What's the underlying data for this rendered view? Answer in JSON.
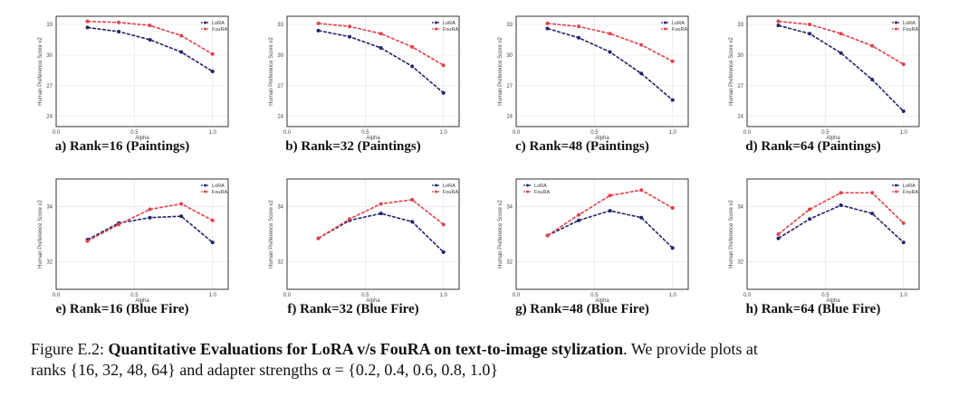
{
  "figure": {
    "caption": {
      "label": "Figure E.2:",
      "bold": "Quantitative Evaluations for LoRA v/s FouRA on text-to-image stylization",
      "rest_line1": ". We provide plots at",
      "line2": "ranks {16, 32, 48, 64} and adapter strengths α = {0.2, 0.4, 0.6, 0.8, 1.0}"
    }
  },
  "colors": {
    "lora": "#23236b",
    "foura": "#e0424c"
  },
  "chart_data": [
    {
      "type": "line",
      "panel_label": "a) Rank=16 (Paintings)",
      "xlabel": "Alpha",
      "ylabel": "Human Preference Score v2",
      "xlim": [
        0.0,
        1.1
      ],
      "ylim": [
        23.0,
        33.8
      ],
      "xticks": [
        0.0,
        0.5,
        1.0
      ],
      "yticks": [
        24,
        27,
        30,
        33
      ],
      "legend_position": "top-right",
      "grid": true,
      "x": [
        0.2,
        0.4,
        0.6,
        0.8,
        1.0
      ],
      "series": [
        {
          "name": "LoRA",
          "values": [
            32.7,
            32.3,
            31.5,
            30.3,
            28.4
          ]
        },
        {
          "name": "FouRA",
          "values": [
            33.3,
            33.2,
            32.9,
            31.9,
            30.1
          ]
        }
      ]
    },
    {
      "type": "line",
      "panel_label": "b) Rank=32 (Paintings)",
      "xlabel": "Alpha",
      "ylabel": "Human Preference Score v2",
      "xlim": [
        0.0,
        1.1
      ],
      "ylim": [
        23.0,
        33.8
      ],
      "xticks": [
        0.0,
        0.5,
        1.0
      ],
      "yticks": [
        24,
        27,
        30,
        33
      ],
      "legend_position": "top-right",
      "grid": true,
      "x": [
        0.2,
        0.4,
        0.6,
        0.8,
        1.0
      ],
      "series": [
        {
          "name": "LoRA",
          "values": [
            32.4,
            31.8,
            30.7,
            28.9,
            26.3
          ]
        },
        {
          "name": "FouRA",
          "values": [
            33.1,
            32.8,
            32.1,
            30.8,
            29.0
          ]
        }
      ]
    },
    {
      "type": "line",
      "panel_label": "c) Rank=48 (Paintings)",
      "xlabel": "Alpha",
      "ylabel": "Human Preference Score v2",
      "xlim": [
        0.0,
        1.1
      ],
      "ylim": [
        23.0,
        33.8
      ],
      "xticks": [
        0.0,
        0.5,
        1.0
      ],
      "yticks": [
        24,
        27,
        30,
        33
      ],
      "legend_position": "top-right",
      "grid": true,
      "x": [
        0.2,
        0.4,
        0.6,
        0.8,
        1.0
      ],
      "series": [
        {
          "name": "LoRA",
          "values": [
            32.6,
            31.7,
            30.3,
            28.2,
            25.6
          ]
        },
        {
          "name": "FouRA",
          "values": [
            33.1,
            32.8,
            32.1,
            31.0,
            29.4
          ]
        }
      ]
    },
    {
      "type": "line",
      "panel_label": "d) Rank=64 (Paintings)",
      "xlabel": "Alpha",
      "ylabel": "Human Preference Score v2",
      "xlim": [
        0.0,
        1.1
      ],
      "ylim": [
        23.0,
        33.8
      ],
      "xticks": [
        0.0,
        0.5,
        1.0
      ],
      "yticks": [
        24,
        27,
        30,
        33
      ],
      "legend_position": "top-right",
      "grid": true,
      "x": [
        0.2,
        0.4,
        0.6,
        0.8,
        1.0
      ],
      "series": [
        {
          "name": "LoRA",
          "values": [
            32.9,
            32.1,
            30.2,
            27.6,
            24.5
          ]
        },
        {
          "name": "FouRA",
          "values": [
            33.3,
            33.0,
            32.1,
            30.9,
            29.1
          ]
        }
      ]
    },
    {
      "type": "line",
      "panel_label": "e) Rank=16 (Blue Fire)",
      "xlabel": "Alpha",
      "ylabel": "Human Preference Score v2",
      "xlim": [
        0.0,
        1.1
      ],
      "ylim": [
        31.0,
        35.0
      ],
      "xticks": [
        0.0,
        0.5,
        1.0
      ],
      "yticks": [
        32,
        34
      ],
      "legend_position": "top-right",
      "grid": true,
      "x": [
        0.2,
        0.4,
        0.6,
        0.8,
        1.0
      ],
      "series": [
        {
          "name": "LoRA",
          "values": [
            32.8,
            33.4,
            33.6,
            33.65,
            32.7
          ]
        },
        {
          "name": "FouRA",
          "values": [
            32.75,
            33.35,
            33.9,
            34.1,
            33.5
          ]
        }
      ]
    },
    {
      "type": "line",
      "panel_label": "f) Rank=32 (Blue Fire)",
      "xlabel": "Alpha",
      "ylabel": "Human Preference Score v2",
      "xlim": [
        0.0,
        1.1
      ],
      "ylim": [
        31.0,
        35.0
      ],
      "xticks": [
        0.0,
        0.5,
        1.0
      ],
      "yticks": [
        32,
        34
      ],
      "legend_position": "top-right",
      "grid": true,
      "x": [
        0.2,
        0.4,
        0.6,
        0.8,
        1.0
      ],
      "series": [
        {
          "name": "LoRA",
          "values": [
            32.85,
            33.5,
            33.75,
            33.45,
            32.35
          ]
        },
        {
          "name": "FouRA",
          "values": [
            32.85,
            33.55,
            34.1,
            34.25,
            33.35
          ]
        }
      ]
    },
    {
      "type": "line",
      "panel_label": "g) Rank=48 (Blue Fire)",
      "xlabel": "Alpha",
      "ylabel": "Human Preference Score v2",
      "xlim": [
        0.0,
        1.1
      ],
      "ylim": [
        31.0,
        35.0
      ],
      "xticks": [
        0.0,
        0.5,
        1.0
      ],
      "yticks": [
        32,
        34
      ],
      "legend_position": "top-left",
      "grid": true,
      "x": [
        0.2,
        0.4,
        0.6,
        0.8,
        1.0
      ],
      "series": [
        {
          "name": "LoRA",
          "values": [
            32.95,
            33.5,
            33.85,
            33.6,
            32.5
          ]
        },
        {
          "name": "FouRA",
          "values": [
            32.95,
            33.7,
            34.4,
            34.6,
            33.95
          ]
        }
      ]
    },
    {
      "type": "line",
      "panel_label": "h) Rank=64 (Blue Fire)",
      "xlabel": "Alpha",
      "ylabel": "Human Preference Score v2",
      "xlim": [
        0.0,
        1.1
      ],
      "ylim": [
        31.0,
        35.0
      ],
      "xticks": [
        0.0,
        0.5,
        1.0
      ],
      "yticks": [
        32,
        34
      ],
      "legend_position": "top-right",
      "grid": true,
      "x": [
        0.2,
        0.4,
        0.6,
        0.8,
        1.0
      ],
      "series": [
        {
          "name": "LoRA",
          "values": [
            32.85,
            33.55,
            34.05,
            33.75,
            32.7
          ]
        },
        {
          "name": "FouRA",
          "values": [
            33.0,
            33.9,
            34.5,
            34.5,
            33.4
          ]
        }
      ]
    }
  ]
}
